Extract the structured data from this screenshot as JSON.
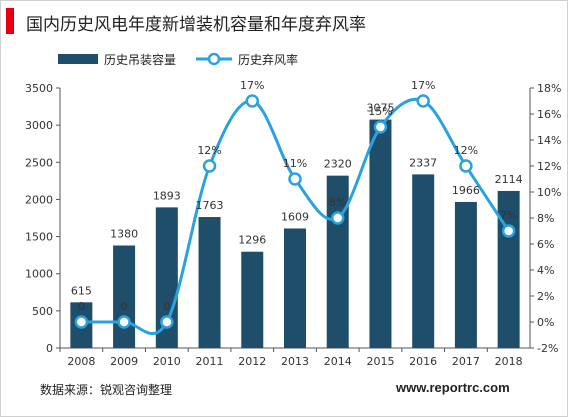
{
  "title": "国内历史风电年度新增装机容量和年度弃风率",
  "source": "数据来源：锐观咨询整理",
  "watermark": "www.reportrc.com",
  "chart_data": {
    "type": "bar",
    "categories": [
      "2008",
      "2009",
      "2010",
      "2011",
      "2012",
      "2013",
      "2014",
      "2015",
      "2016",
      "2017",
      "2018"
    ],
    "series": [
      {
        "name": "历史吊装容量",
        "type": "bar",
        "axis": "left",
        "color": "#1f4e6b",
        "values": [
          615,
          1380,
          1893,
          1763,
          1296,
          1609,
          2320,
          3075,
          2337,
          1966,
          2114
        ],
        "labels": [
          "615",
          "1380",
          "1893",
          "1763",
          "1296",
          "1609",
          "2320",
          "3075",
          "2337",
          "1966",
          "2114"
        ]
      },
      {
        "name": "历史弃风率",
        "type": "line",
        "axis": "right",
        "color": "#29a3e0",
        "values": [
          0,
          0,
          0,
          12,
          17,
          11,
          8,
          15,
          17,
          12,
          7
        ],
        "labels": [
          "0",
          "0",
          "0",
          "12%",
          "17%",
          "11%",
          "8%",
          "15%",
          "17%",
          "12%",
          "7%"
        ]
      }
    ],
    "y_left": {
      "min": 0,
      "max": 3500,
      "ticks": [
        "0",
        "500",
        "1000",
        "1500",
        "2000",
        "2500",
        "3000",
        "3500"
      ]
    },
    "y_right": {
      "min": -2,
      "max": 18,
      "ticks": [
        "-2%",
        "0%",
        "2%",
        "4%",
        "6%",
        "8%",
        "10%",
        "12%",
        "14%",
        "16%",
        "18%"
      ]
    },
    "legend": "top-left",
    "grid": false
  }
}
